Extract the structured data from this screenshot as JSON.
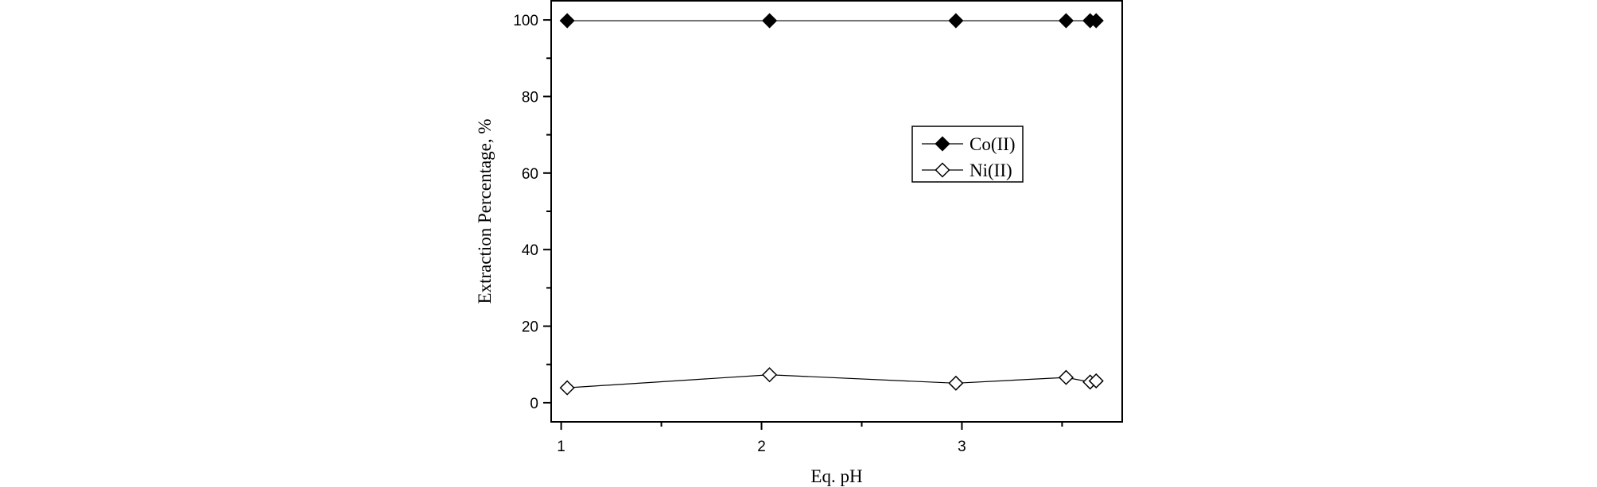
{
  "chart_data": {
    "type": "line",
    "title": "",
    "xlabel": "Eq. pH",
    "ylabel": "Extraction Percentage, %",
    "xlim": [
      0.95,
      3.8
    ],
    "ylim": [
      -5,
      105
    ],
    "xticks": [
      1,
      2,
      3
    ],
    "xticks_minor": [
      1.5,
      2.5,
      3.5
    ],
    "yticks": [
      0,
      20,
      40,
      60,
      80,
      100
    ],
    "yticks_minor": [
      10,
      30,
      50,
      70,
      90
    ],
    "grid": false,
    "legend_position": "upper-right-inside",
    "series": [
      {
        "name": "Co(II)",
        "marker": "filled-diamond",
        "color": "#000000",
        "x": [
          1.03,
          2.04,
          2.97,
          3.52,
          3.64,
          3.67
        ],
        "y": [
          99.8,
          99.8,
          99.8,
          99.8,
          99.8,
          99.8
        ]
      },
      {
        "name": "Ni(II)",
        "marker": "open-diamond",
        "color": "#000000",
        "x": [
          1.03,
          2.04,
          2.97,
          3.52,
          3.64,
          3.67
        ],
        "y": [
          3.9,
          7.3,
          5.1,
          6.6,
          5.4,
          5.7
        ]
      }
    ]
  }
}
